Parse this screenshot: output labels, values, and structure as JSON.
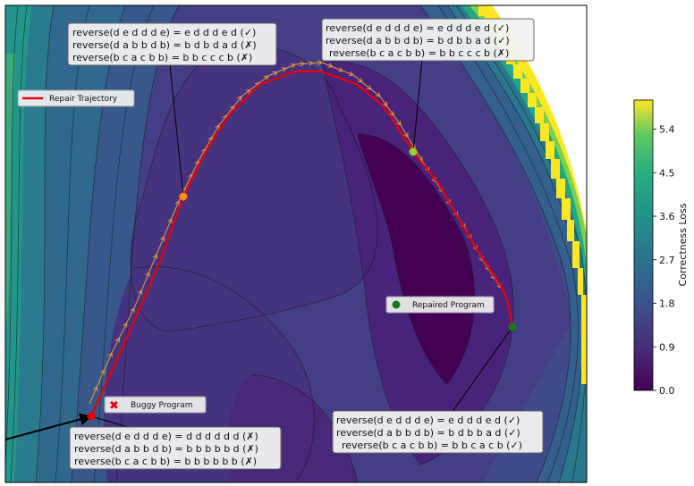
{
  "chart_data": {
    "type": "contour",
    "legend": {
      "trajectory": "Repair Trajectory",
      "buggy": "Buggy Program",
      "repaired": "Repaired Program"
    },
    "colorbar": {
      "label": "Correctness Loss",
      "ticks": [
        "0.0",
        "0.9",
        "1.8",
        "2.7",
        "3.6",
        "4.5",
        "5.4"
      ],
      "values": [
        0.0,
        0.9,
        1.8,
        2.7,
        3.6,
        4.5,
        5.4
      ],
      "range": [
        0,
        6.0
      ]
    },
    "annotations": {
      "buggy": [
        "reverse(d e d d d e) = d d d d d d (✗)",
        "reverse(d a b b d b) = b b b b b d (✗)",
        "reverse(b c a c b b) = b b b b b b (✗)"
      ],
      "mid1": [
        "reverse(d e d d d e) = e d d d e d (✓)",
        "reverse(d a b b d b) = b d b d a d (✗)",
        "reverse(b c a c b b) = b b c c c b (✗)"
      ],
      "mid2": [
        "reverse(d e d d d e) = e d d d e d (✓)",
        "reverse(d a b b d b) = b d b b a d (✓)",
        "reverse(b c a c b b) = b b c c c b (✗)"
      ],
      "repaired": [
        "reverse(d e d d d e) = e d d d e d (✓)",
        "reverse(d a b b d b) = b d b b a d (✓)",
        "reverse(b c a c b b) = b b c a c b (✓)"
      ]
    },
    "colors": {
      "trajectory": "#e8000b",
      "buggy": "#e8000b",
      "mid1": "#ff8c00",
      "mid2": "#9acd32",
      "repaired": "#1a7a1a",
      "arrows": "#e59b3a",
      "outside": "#ede224"
    }
  }
}
